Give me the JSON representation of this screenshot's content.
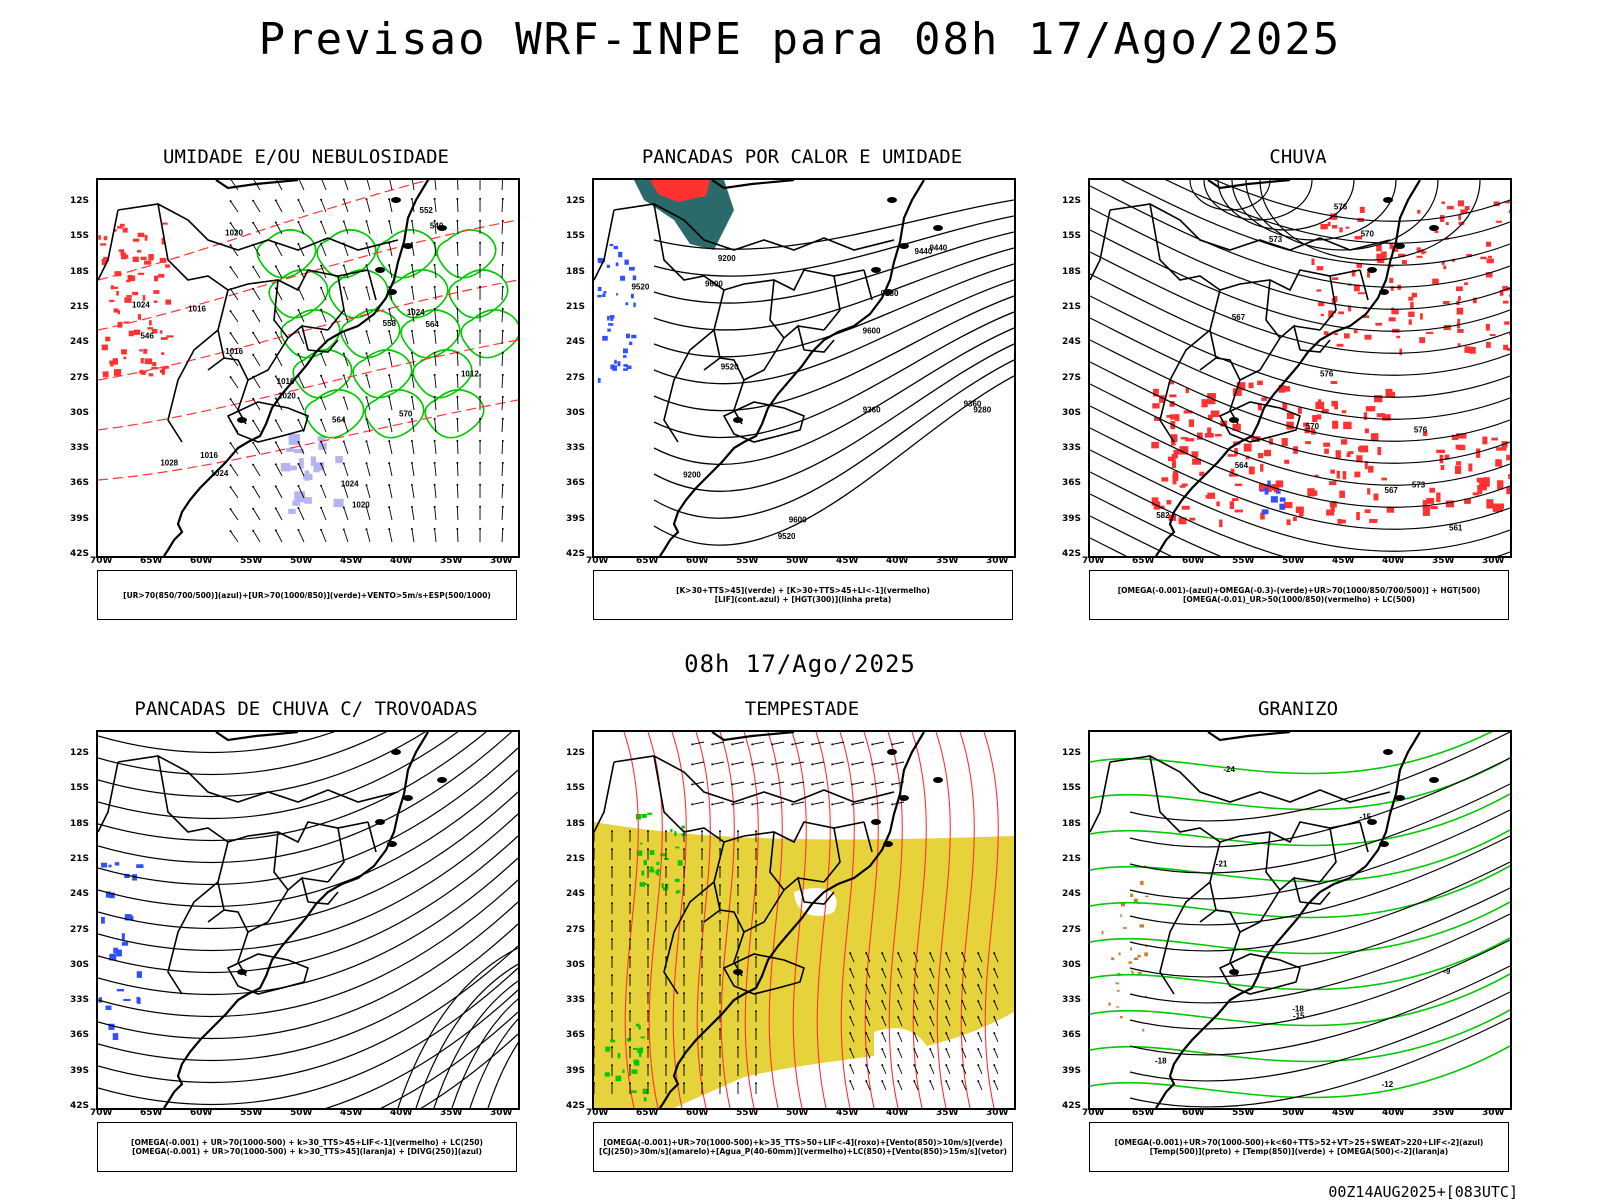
{
  "title": "Previsao WRF-INPE  para 08h 17/Ago/2025",
  "subtitle": "08h 17/Ago/2025",
  "footer": "00Z14AUG2025+[083UTC]",
  "lat_labels": [
    "12S",
    "15S",
    "18S",
    "21S",
    "24S",
    "27S",
    "30S",
    "33S",
    "36S",
    "39S",
    "42S"
  ],
  "lon_labels": [
    "70W",
    "65W",
    "60W",
    "55W",
    "50W",
    "45W",
    "40W",
    "35W",
    "30W"
  ],
  "colors": {
    "green": "#00c800",
    "red": "#ff3232",
    "blue": "#3050ff",
    "yellow": "#e6d23a",
    "teal": "#2a6a6a",
    "lavender": "#b4b4f0"
  },
  "panels": [
    {
      "title": "UMIDADE E/OU NEBULOSIDADE",
      "legend": [
        "[UR>70(850/700/500)](azul)+[UR>70(1000/850)](verde)+VENTO>5m/s+ESP(500/1000)"
      ],
      "labels": [
        "1020",
        "1020",
        "1016",
        "1016",
        "1024",
        "1024",
        "1012",
        "1016",
        "1020",
        "1024",
        "1028",
        "1024",
        "1016",
        "564",
        "558",
        "552",
        "546",
        "540",
        "570",
        "564"
      ]
    },
    {
      "title": "PANCADAS POR CALOR E UMIDADE",
      "legend": [
        "[K>30+TTS>45](verde) + [K>30+TTS>45+LI<-1](vermelho)",
        "[LIF](cont.azul) + [HGT(300)](linha preta)"
      ],
      "labels": [
        "9520",
        "9600",
        "9600",
        "9600",
        "9440",
        "9520",
        "9360",
        "9520",
        "9440",
        "9280",
        "9360",
        "9200",
        "9280",
        "9200"
      ]
    },
    {
      "title": "CHUVA",
      "legend": [
        "[OMEGA(-0.001)-(azul)+OMEGA(-0.3)-(verde)+UR>70(1000/850/700/500)] + HGT(500)",
        "[OMEGA(-0.01)_UR>50(1000/850)(vermelho) + LC(500)"
      ],
      "labels": [
        "582",
        "576",
        "576",
        "570",
        "573",
        "576",
        "573",
        "570",
        "567",
        "564",
        "561",
        "567"
      ]
    },
    {
      "title": "PANCADAS DE CHUVA C/ TROVOADAS",
      "legend": [
        "[OMEGA(-0.001) + UR>70(1000-500) + k>30_TTS>45+LIF<-1](vermelho) + LC(250)",
        "[OMEGA(-0.001) + UR>70(1000-500) + k>30_TTS>45](laranja) + [DIVG(250)](azul)"
      ],
      "labels": []
    },
    {
      "title": "TEMPESTADE",
      "legend": [
        "[OMEGA(-0.001)+UR>70(1000-500)+k>35_TTS>50+LIF<-4](roxo)+[Vento(850)>10m/s](verde)",
        "[CJ(250)>30m/s](amarelo)+[Agua_P(40-60mm)](vermelho)+LC(850)+[Vento(850)>15m/s](vetor)"
      ],
      "labels": []
    },
    {
      "title": "GRANIZO",
      "legend": [
        "[OMEGA(-0.001)+UR>70(1000-500)+k<60+TTS>52+VT>25+SWEAT>220+LIF<-2](azul)",
        "[Temp(500)](preto) + [Temp(850)](verde) + [OMEGA(500)<-2](laranja)"
      ],
      "labels": [
        "-9",
        "-12",
        "-15",
        "-18",
        "-18",
        "-21",
        "-24",
        "-15"
      ]
    }
  ]
}
